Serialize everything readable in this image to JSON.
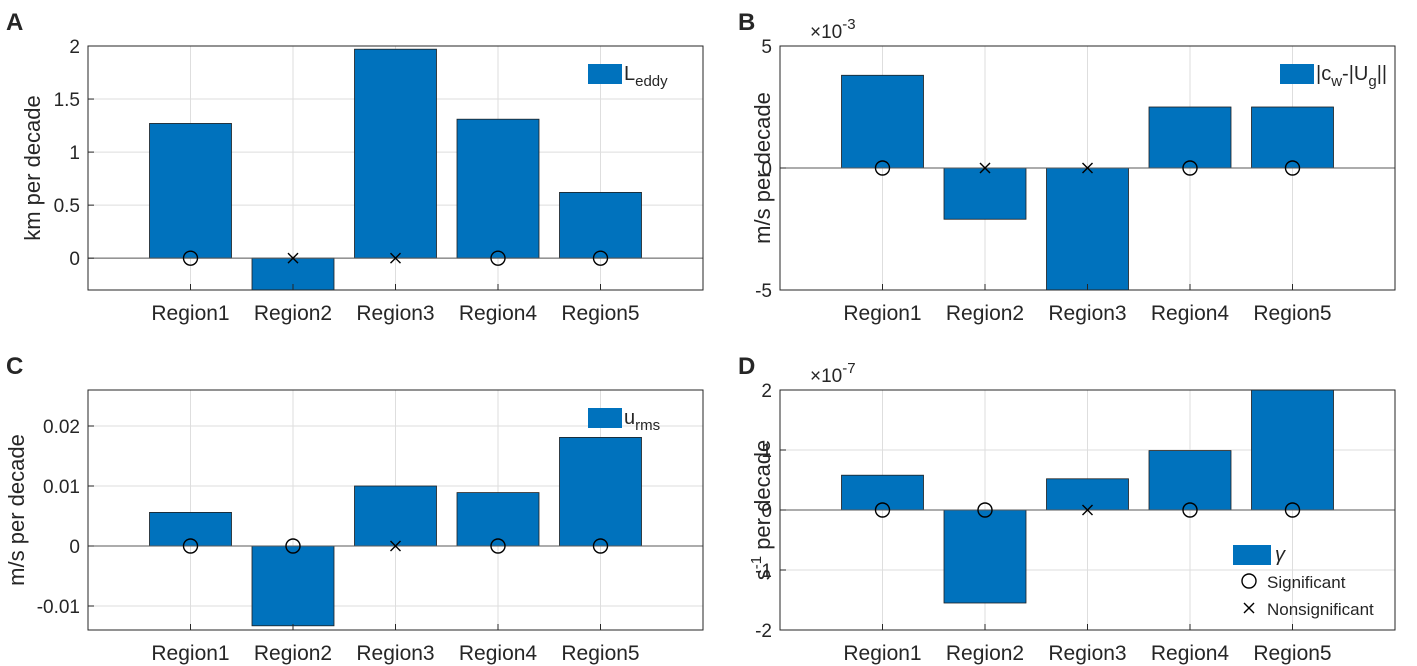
{
  "chart_data": [
    {
      "panel_label": "A",
      "type": "bar",
      "categories": [
        "Region1",
        "Region2",
        "Region3",
        "Region4",
        "Region5"
      ],
      "values": [
        1.27,
        -0.3,
        1.97,
        1.31,
        0.62
      ],
      "significance": [
        "significant",
        "nonsignificant",
        "nonsignificant",
        "significant",
        "significant"
      ],
      "ylabel": "km per decade",
      "ylim": [
        -0.3,
        2
      ],
      "yticks": [
        0,
        0.5,
        1,
        1.5,
        2
      ],
      "ytick_labels": [
        "0",
        "0.5",
        "1",
        "1.5",
        "2"
      ],
      "exponent_base": "",
      "exponent_power": "",
      "legend": {
        "label_main": "L",
        "label_sub": "eddy",
        "label_sub2": "",
        "label_tail": "",
        "placement": "top-right"
      },
      "bar_color": "#0072BD",
      "grid": true
    },
    {
      "panel_label": "B",
      "type": "bar",
      "categories": [
        "Region1",
        "Region2",
        "Region3",
        "Region4",
        "Region5"
      ],
      "values": [
        3.8,
        -2.1,
        -5.0,
        2.5,
        2.5
      ],
      "significance": [
        "significant",
        "nonsignificant",
        "nonsignificant",
        "significant",
        "significant"
      ],
      "ylabel": "m/s per decade",
      "ylim": [
        -5,
        5
      ],
      "yticks": [
        -5,
        0,
        5
      ],
      "ytick_labels": [
        "-5",
        "0",
        "5"
      ],
      "exponent_base": "×10",
      "exponent_power": "-3",
      "legend": {
        "label_main": "|c",
        "label_sub": "w",
        "label_mid": "-|U",
        "label_sub2": "g",
        "label_tail": "||",
        "placement": "top-right"
      },
      "bar_color": "#0072BD",
      "grid": true
    },
    {
      "panel_label": "C",
      "type": "bar",
      "categories": [
        "Region1",
        "Region2",
        "Region3",
        "Region4",
        "Region5"
      ],
      "values": [
        0.0056,
        -0.0133,
        0.01,
        0.0089,
        0.0181
      ],
      "significance": [
        "significant",
        "significant",
        "nonsignificant",
        "significant",
        "significant"
      ],
      "ylabel": "m/s per decade",
      "ylim": [
        -0.014,
        0.026
      ],
      "yticks": [
        -0.01,
        0,
        0.01,
        0.02
      ],
      "ytick_labels": [
        "-0.01",
        "0",
        "0.01",
        "0.02"
      ],
      "exponent_base": "",
      "exponent_power": "",
      "legend": {
        "label_main": "u",
        "label_sub": "rms",
        "label_sub2": "",
        "label_tail": "",
        "placement": "top-right"
      },
      "bar_color": "#0072BD",
      "grid": true
    },
    {
      "panel_label": "D",
      "type": "bar",
      "categories": [
        "Region1",
        "Region2",
        "Region3",
        "Region4",
        "Region5"
      ],
      "values": [
        0.58,
        -1.55,
        0.52,
        0.99,
        2.0
      ],
      "significance": [
        "significant",
        "significant",
        "nonsignificant",
        "significant",
        "significant"
      ],
      "ylabel_prefix": "s",
      "ylabel_sup": "-1",
      "ylabel_suffix": " per decade",
      "ylim": [
        -2,
        2
      ],
      "yticks": [
        -2,
        -1,
        0,
        1,
        2
      ],
      "ytick_labels": [
        "-2",
        "-1",
        "0",
        "1",
        "2"
      ],
      "exponent_base": "×10",
      "exponent_power": "-7",
      "legend": {
        "bar_label": "γ",
        "significant_label": "Significant",
        "nonsignificant_label": "Nonsignificant",
        "placement": "bottom-right"
      },
      "bar_color": "#0072BD",
      "grid": true
    }
  ]
}
